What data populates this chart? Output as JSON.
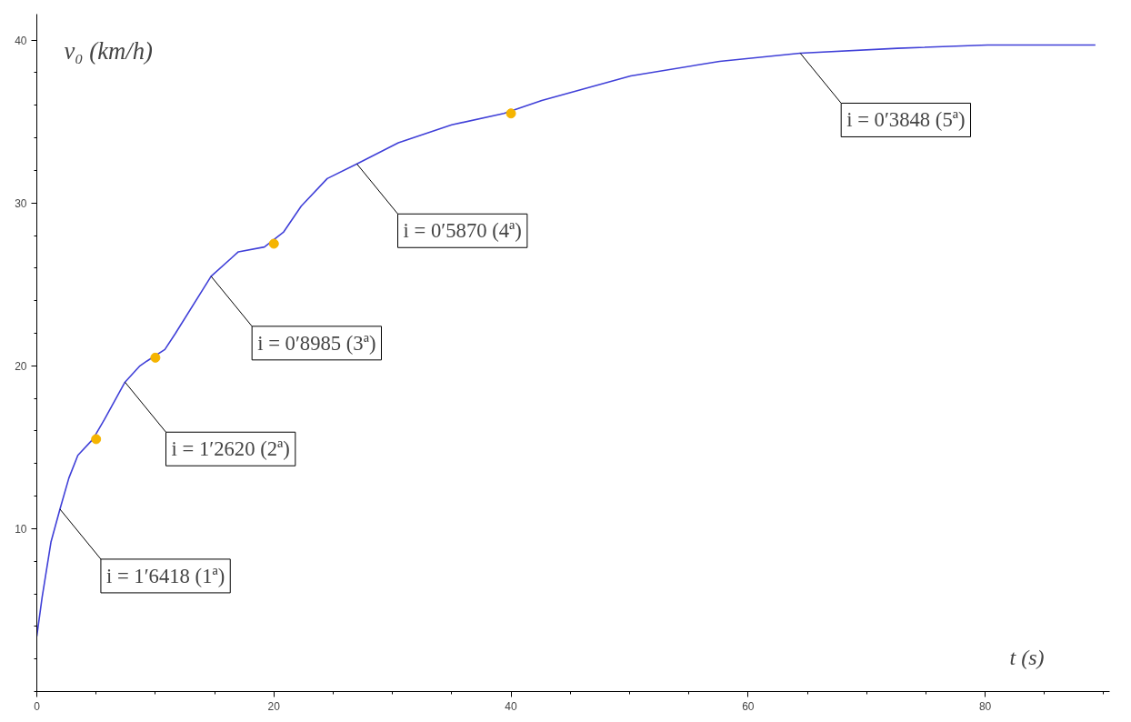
{
  "chart_data": {
    "type": "line",
    "xlabel": "t (s)",
    "ylabel": "v₀ (km/h)",
    "xlim": [
      0,
      90.5
    ],
    "ylim": [
      0,
      41.6
    ],
    "xticks": [
      0,
      20,
      40,
      60,
      80
    ],
    "yticks": [
      10,
      20,
      30,
      40
    ],
    "grid": false,
    "series": [
      {
        "color": "#4040d8",
        "x": [
          0,
          0.45,
          1.2,
          1.95,
          2.7,
          3.46,
          4.74,
          5.7,
          7.44,
          8.7,
          9.3,
          10.8,
          11.7,
          14.7,
          17,
          19.2,
          20.8,
          22.3,
          24.5,
          27,
          30.5,
          35,
          39.4,
          42.6,
          50.1,
          57.6,
          64.4,
          72.6,
          80.2,
          89.3
        ],
        "values": [
          3.4,
          5.8,
          9.2,
          11.2,
          13.1,
          14.5,
          15.5,
          16.7,
          19.0,
          20.0,
          20.3,
          21.0,
          22.0,
          25.5,
          27.0,
          27.3,
          28.2,
          29.8,
          31.5,
          32.4,
          33.7,
          34.8,
          35.5,
          36.3,
          37.8,
          38.7,
          39.2,
          39.5,
          39.7,
          39.7
        ]
      },
      {
        "type": "scatter",
        "marker": "circle",
        "color": "#f5b400",
        "x": [
          5,
          10,
          20,
          40
        ],
        "values": [
          15.5,
          20.5,
          27.5,
          35.5
        ]
      }
    ],
    "annotations": [
      {
        "text": "i = 1′6418 (1ª)",
        "x": 1.95,
        "y": 11.2
      },
      {
        "text": "i = 1′2620 (2ª)",
        "x": 7.44,
        "y": 19.0
      },
      {
        "text": "i = 0′8985 (3ª)",
        "x": 14.7,
        "y": 25.5
      },
      {
        "text": "i = 0′5870 (4ª)",
        "x": 27,
        "y": 32.4
      },
      {
        "text": "i = 0′3848 (5ª)",
        "x": 64.4,
        "y": 39.2
      }
    ]
  }
}
